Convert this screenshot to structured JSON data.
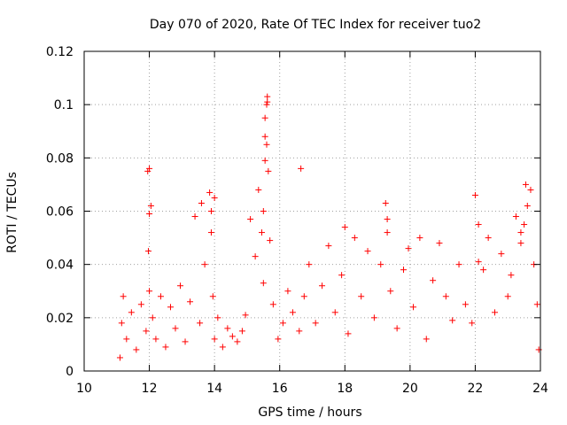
{
  "chart_data": {
    "type": "scatter",
    "title": "Day 070 of 2020, Rate Of TEC Index for receiver tuo2",
    "xlabel": "GPS time / hours",
    "ylabel": "ROTI / TECUs",
    "xlim": [
      10,
      24
    ],
    "ylim": [
      0,
      0.12
    ],
    "x_ticks": [
      10,
      12,
      14,
      16,
      18,
      20,
      22,
      24
    ],
    "x_tick_labels": [
      "10",
      "12",
      "14",
      "16",
      "18",
      "20",
      "22",
      "24"
    ],
    "y_ticks": [
      0,
      0.02,
      0.04,
      0.06,
      0.08,
      0.1,
      0.12
    ],
    "y_tick_labels": [
      "0",
      "0.02",
      "0.04",
      "0.06",
      "0.08",
      "0.1",
      "0.12"
    ],
    "grid": true,
    "marker": "plus",
    "marker_color": "#ff0000",
    "series": [
      {
        "x": [
          11.1,
          11.15,
          11.2,
          11.3,
          11.45,
          11.6,
          11.75,
          11.9,
          11.95,
          11.97,
          12.0,
          12.05,
          12.1,
          12.2,
          12.35,
          12.5,
          12.65,
          12.8,
          12.95,
          13.1,
          13.25,
          13.4,
          13.55,
          13.7,
          13.85,
          13.9,
          13.95,
          14.0,
          14.1,
          14.25,
          14.4,
          14.55,
          14.7,
          14.85,
          14.95,
          15.1,
          15.25,
          15.35,
          15.45,
          15.5,
          15.55,
          15.6,
          15.62,
          15.65,
          15.7,
          15.8,
          15.95,
          16.1,
          16.25,
          16.4,
          16.6,
          16.75,
          16.9,
          17.1,
          17.3,
          17.5,
          17.7,
          17.9,
          18.0,
          18.1,
          18.3,
          18.5,
          18.7,
          18.9,
          19.1,
          19.25,
          19.3,
          19.4,
          19.6,
          19.8,
          19.95,
          20.1,
          20.3,
          20.5,
          20.7,
          20.9,
          21.1,
          21.3,
          21.5,
          21.7,
          21.9,
          22.0,
          22.1,
          22.25,
          22.4,
          22.6,
          22.8,
          23.0,
          23.1,
          23.25,
          23.4,
          23.5,
          23.55,
          23.6,
          23.7,
          23.8,
          23.9,
          23.95,
          12.0,
          13.9,
          15.55,
          15.6,
          15.62,
          15.55,
          16.65,
          14.0,
          23.4,
          22.1,
          19.3,
          15.5,
          12.0,
          13.6
        ],
        "y": [
          0.005,
          0.018,
          0.028,
          0.012,
          0.022,
          0.008,
          0.025,
          0.015,
          0.075,
          0.045,
          0.03,
          0.062,
          0.02,
          0.012,
          0.028,
          0.009,
          0.024,
          0.016,
          0.032,
          0.011,
          0.026,
          0.058,
          0.018,
          0.04,
          0.067,
          0.052,
          0.028,
          0.012,
          0.02,
          0.009,
          0.016,
          0.013,
          0.011,
          0.015,
          0.021,
          0.057,
          0.043,
          0.068,
          0.052,
          0.033,
          0.088,
          0.1,
          0.103,
          0.075,
          0.049,
          0.025,
          0.012,
          0.018,
          0.03,
          0.022,
          0.015,
          0.028,
          0.04,
          0.018,
          0.032,
          0.047,
          0.022,
          0.036,
          0.054,
          0.014,
          0.05,
          0.028,
          0.045,
          0.02,
          0.04,
          0.063,
          0.052,
          0.03,
          0.016,
          0.038,
          0.046,
          0.024,
          0.05,
          0.012,
          0.034,
          0.048,
          0.028,
          0.019,
          0.04,
          0.025,
          0.018,
          0.066,
          0.055,
          0.038,
          0.05,
          0.022,
          0.044,
          0.028,
          0.036,
          0.058,
          0.048,
          0.055,
          0.07,
          0.062,
          0.068,
          0.04,
          0.025,
          0.008,
          0.076,
          0.06,
          0.095,
          0.085,
          0.101,
          0.079,
          0.076,
          0.065,
          0.052,
          0.041,
          0.057,
          0.06,
          0.059,
          0.063
        ]
      }
    ]
  }
}
